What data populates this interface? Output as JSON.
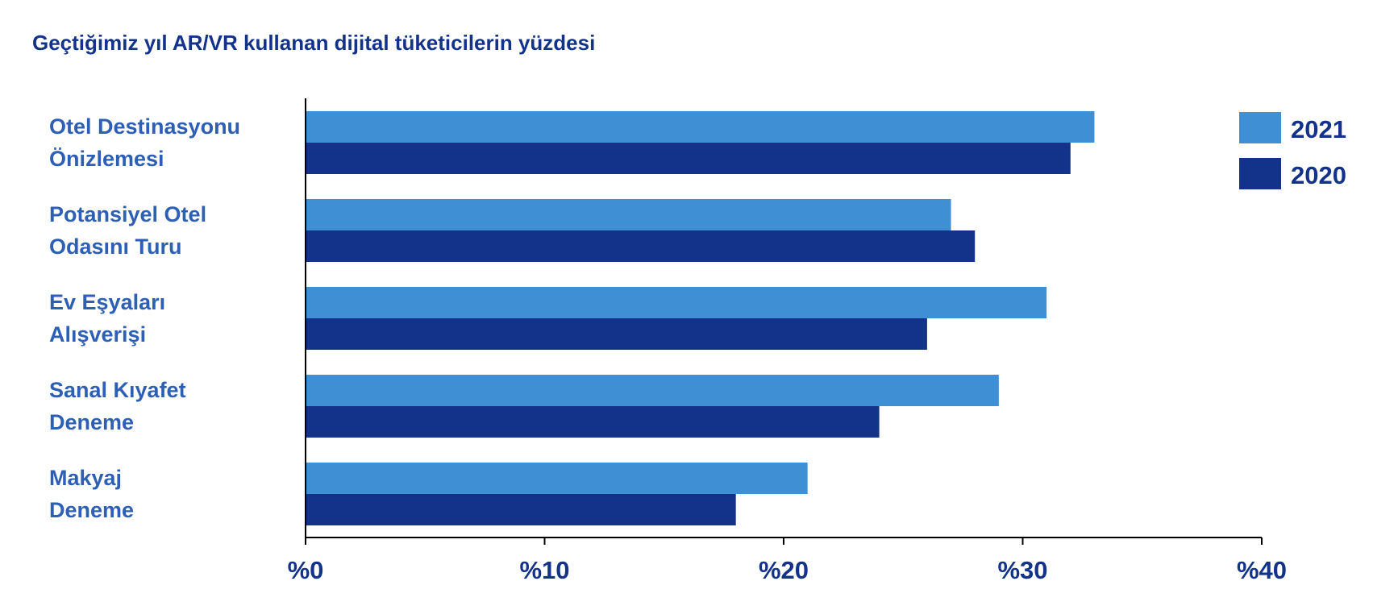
{
  "chart_data": {
    "type": "bar",
    "orientation": "horizontal",
    "title": "Geçtiğimiz yıl AR/VR kullanan dijital tüketicilerin yüzdesi",
    "categories": [
      [
        "Otel Destinasyonu",
        "Önizlemesi"
      ],
      [
        "Potansiyel Otel",
        "Odasını Turu"
      ],
      [
        "Ev Eşyaları",
        "Alışverişi"
      ],
      [
        "Sanal Kıyafet",
        "Deneme"
      ],
      [
        "Makyaj",
        "Deneme"
      ]
    ],
    "series": [
      {
        "name": "2021",
        "color": "#3f8fd4",
        "values": [
          33,
          27,
          31,
          29,
          21
        ]
      },
      {
        "name": "2020",
        "color": "#13328a",
        "values": [
          32,
          28,
          26,
          24,
          18
        ]
      }
    ],
    "xlim": [
      0,
      40
    ],
    "xticks": [
      0,
      10,
      20,
      30,
      40
    ],
    "xtick_labels": [
      "%0",
      "%10",
      "%20",
      "%30",
      "%40"
    ],
    "grid": false,
    "legend_placement": "top-right",
    "colors": {
      "title": "#13328a",
      "category_label": "#2d5fb5",
      "axis": "#000000"
    }
  }
}
